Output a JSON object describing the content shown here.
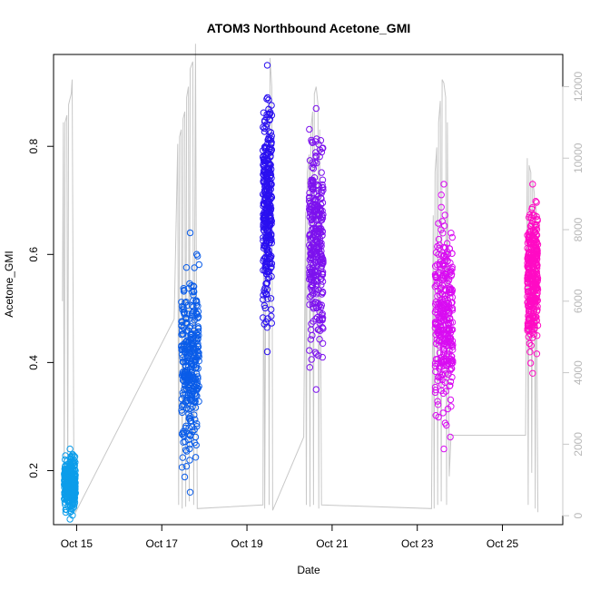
{
  "chart_data": {
    "type": "scatter",
    "title": "ATOM3 Northbound Acetone_GMI",
    "xlabel": "Date",
    "ylabel": "Acetone_GMI",
    "xlim": [
      "2017-10-14T11:00",
      "2017-10-26T10:00"
    ],
    "ylim": [
      0.1,
      0.97
    ],
    "yticks": [
      0.2,
      0.4,
      0.6,
      0.8
    ],
    "xticks": [
      {
        "label": "Oct 15",
        "date": "2017-10-15"
      },
      {
        "label": "Oct 17",
        "date": "2017-10-17"
      },
      {
        "label": "Oct 19",
        "date": "2017-10-19"
      },
      {
        "label": "Oct 21",
        "date": "2017-10-21"
      },
      {
        "label": "Oct 23",
        "date": "2017-10-23"
      },
      {
        "label": "Oct 25",
        "date": "2017-10-25"
      }
    ],
    "secondary_axis": {
      "side": "right",
      "ylim": [
        -250,
        12900
      ],
      "ticks": [
        0,
        2000,
        4000,
        6000,
        8000,
        10000,
        12000
      ],
      "color": "#c8c8c8"
    },
    "flights": [
      {
        "start": "2017-10-14T17:00",
        "end": "2017-10-14T23:30",
        "ymin": 0.11,
        "ymax": 0.24,
        "color": "#0c9dea"
      },
      {
        "start": "2017-10-17T11:00",
        "end": "2017-10-17T21:00",
        "ymin": 0.16,
        "ymax": 0.64,
        "color": "#0a5ce8"
      },
      {
        "start": "2017-10-19T09:00",
        "end": "2017-10-19T14:00",
        "ymin": 0.42,
        "ymax": 0.95,
        "color": "#2a10f0"
      },
      {
        "start": "2017-10-20T11:00",
        "end": "2017-10-20T19:00",
        "ymin": 0.35,
        "ymax": 0.87,
        "color": "#7d12ee"
      },
      {
        "start": "2017-10-23T10:00",
        "end": "2017-10-23T20:00",
        "ymin": 0.24,
        "ymax": 0.73,
        "color": "#d90cf2"
      },
      {
        "start": "2017-10-25T14:00",
        "end": "2017-10-25T20:00",
        "ymin": 0.38,
        "ymax": 0.73,
        "color": "#ff0bc4"
      }
    ],
    "altitude_profile": [
      [
        "2017-10-14T16:00",
        6000
      ],
      [
        "2017-10-14T16:30",
        11000
      ],
      [
        "2017-10-14T17:00",
        400
      ],
      [
        "2017-10-14T17:30",
        11000
      ],
      [
        "2017-10-14T18:30",
        11200
      ],
      [
        "2017-10-14T19:00",
        300
      ],
      [
        "2017-10-14T19:30",
        11500
      ],
      [
        "2017-10-14T21:00",
        11800
      ],
      [
        "2017-10-14T21:30",
        12200
      ],
      [
        "2017-10-14T22:30",
        600
      ],
      [
        "2017-10-14T23:30",
        100
      ],
      [
        "2017-10-17T07:00",
        5500
      ],
      [
        "2017-10-17T09:00",
        10400
      ],
      [
        "2017-10-17T09:30",
        300
      ],
      [
        "2017-10-17T10:00",
        10600
      ],
      [
        "2017-10-17T11:00",
        10800
      ],
      [
        "2017-10-17T11:30",
        200
      ],
      [
        "2017-10-17T12:00",
        11100
      ],
      [
        "2017-10-17T13:00",
        11300
      ],
      [
        "2017-10-17T13:30",
        250
      ],
      [
        "2017-10-17T14:00",
        11700
      ],
      [
        "2017-10-17T15:00",
        12000
      ],
      [
        "2017-10-17T15:30",
        400
      ],
      [
        "2017-10-17T16:00",
        12500
      ],
      [
        "2017-10-17T17:30",
        12700
      ],
      [
        "2017-10-17T18:00",
        300
      ],
      [
        "2017-10-17T19:00",
        13200
      ],
      [
        "2017-10-17T20:00",
        200
      ],
      [
        "2017-10-19T09:00",
        300
      ],
      [
        "2017-10-19T09:30",
        9500
      ],
      [
        "2017-10-19T10:00",
        200
      ],
      [
        "2017-10-19T11:00",
        10800
      ],
      [
        "2017-10-19T12:00",
        11500
      ],
      [
        "2017-10-19T12:30",
        300
      ],
      [
        "2017-10-19T13:00",
        12800
      ],
      [
        "2017-10-19T14:00",
        12000
      ],
      [
        "2017-10-19T14:30",
        150
      ],
      [
        "2017-10-20T08:00",
        2200
      ],
      [
        "2017-10-20T09:00",
        8500
      ],
      [
        "2017-10-20T09:30",
        300
      ],
      [
        "2017-10-20T10:00",
        9600
      ],
      [
        "2017-10-20T11:00",
        10100
      ],
      [
        "2017-10-20T11:30",
        250
      ],
      [
        "2017-10-20T12:00",
        10800
      ],
      [
        "2017-10-20T13:00",
        11300
      ],
      [
        "2017-10-20T13:30",
        300
      ],
      [
        "2017-10-20T14:00",
        11800
      ],
      [
        "2017-10-20T15:00",
        12000
      ],
      [
        "2017-10-20T16:00",
        11500
      ],
      [
        "2017-10-20T16:30",
        200
      ],
      [
        "2017-10-20T17:00",
        10800
      ],
      [
        "2017-10-20T18:00",
        300
      ],
      [
        "2017-10-23T08:00",
        200
      ],
      [
        "2017-10-23T09:00",
        8400
      ],
      [
        "2017-10-23T09:30",
        200
      ],
      [
        "2017-10-23T10:00",
        9600
      ],
      [
        "2017-10-23T11:00",
        10300
      ],
      [
        "2017-10-23T11:30",
        300
      ],
      [
        "2017-10-23T12:00",
        11000
      ],
      [
        "2017-10-23T13:00",
        11600
      ],
      [
        "2017-10-23T13:30",
        400
      ],
      [
        "2017-10-23T14:00",
        12200
      ],
      [
        "2017-10-23T15:00",
        12100
      ],
      [
        "2017-10-23T16:00",
        11700
      ],
      [
        "2017-10-23T16:30",
        300
      ],
      [
        "2017-10-23T17:00",
        11000
      ],
      [
        "2017-10-23T18:00",
        1100
      ],
      [
        "2017-10-23T19:00",
        2250
      ],
      [
        "2017-10-25T13:00",
        2250
      ],
      [
        "2017-10-25T14:00",
        10000
      ],
      [
        "2017-10-25T14:30",
        300
      ],
      [
        "2017-10-25T15:00",
        9800
      ],
      [
        "2017-10-25T16:00",
        9600
      ],
      [
        "2017-10-25T16:30",
        1200
      ],
      [
        "2017-10-25T17:00",
        9400
      ],
      [
        "2017-10-25T18:00",
        9000
      ],
      [
        "2017-10-25T18:30",
        200
      ],
      [
        "2017-10-25T19:00",
        8700
      ],
      [
        "2017-10-25T20:00",
        100
      ]
    ]
  }
}
